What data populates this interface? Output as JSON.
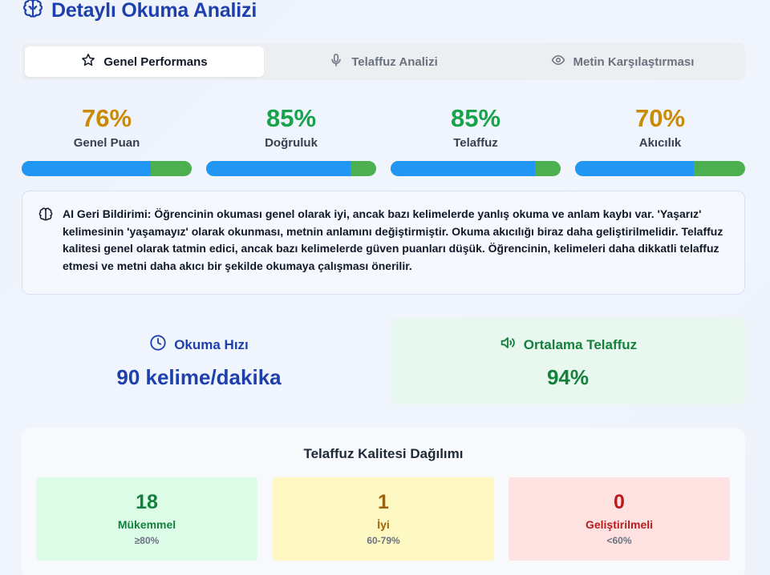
{
  "header": {
    "title": "Detaylı Okuma Analizi",
    "icon": "brain-icon",
    "color": "#1e40af"
  },
  "tabs": [
    {
      "label": "Genel Performans",
      "icon": "star-icon",
      "active": true
    },
    {
      "label": "Telaffuz Analizi",
      "icon": "microphone-icon",
      "active": false
    },
    {
      "label": "Metin Karşılaştırması",
      "icon": "eye-icon",
      "active": false
    }
  ],
  "metrics": [
    {
      "value": "76%",
      "label": "Genel Puan",
      "color": "#ca8a04",
      "bar_fraction": 0.76
    },
    {
      "value": "85%",
      "label": "Doğruluk",
      "color": "#16a34a",
      "bar_fraction": 0.85
    },
    {
      "value": "85%",
      "label": "Telaffuz",
      "color": "#16a34a",
      "bar_fraction": 0.85
    },
    {
      "value": "70%",
      "label": "Akıcılık",
      "color": "#ca8a04",
      "bar_fraction": 0.7
    }
  ],
  "bar_colors": {
    "fill": "#2196f3",
    "track": "#4caf50"
  },
  "feedback": {
    "icon": "brain-icon",
    "text": "AI Geri Bildirimi: Öğrencinin okuması genel olarak iyi, ancak bazı kelimelerde yanlış okuma ve anlam kaybı var. 'Yaşarız' kelimesinin 'yaşamayız' olarak okunması, metnin anlamını değiştirmiştir. Okuma akıcılığı biraz daha geliştirilmelidir. Telaffuz kalitesi genel olarak tatmin edici, ancak bazı kelimelerde güven puanları düşük. Öğrencinin, kelimeleri daha dikkatli telaffuz etmesi ve metni daha akıcı bir şekilde okumaya çalışması önerilir."
  },
  "stats": {
    "speed": {
      "title": "Okuma Hızı",
      "value": "90 kelime/dakika",
      "icon": "clock-icon",
      "color": "#1e40af"
    },
    "pronunciation": {
      "title": "Ortalama Telaffuz",
      "value": "94%",
      "icon": "speaker-icon",
      "color": "#15803d"
    }
  },
  "distribution": {
    "title": "Telaffuz Kalitesi Dağılımı",
    "items": [
      {
        "count": "18",
        "label": "Mükemmel",
        "range": "≥80%",
        "bg": "#dcfce7",
        "color": "#15803d"
      },
      {
        "count": "1",
        "label": "İyi",
        "range": "60-79%",
        "bg": "#fef9c3",
        "color": "#a16207"
      },
      {
        "count": "0",
        "label": "Geliştirilmeli",
        "range": "<60%",
        "bg": "#fee2e2",
        "color": "#b91c1c"
      }
    ]
  }
}
